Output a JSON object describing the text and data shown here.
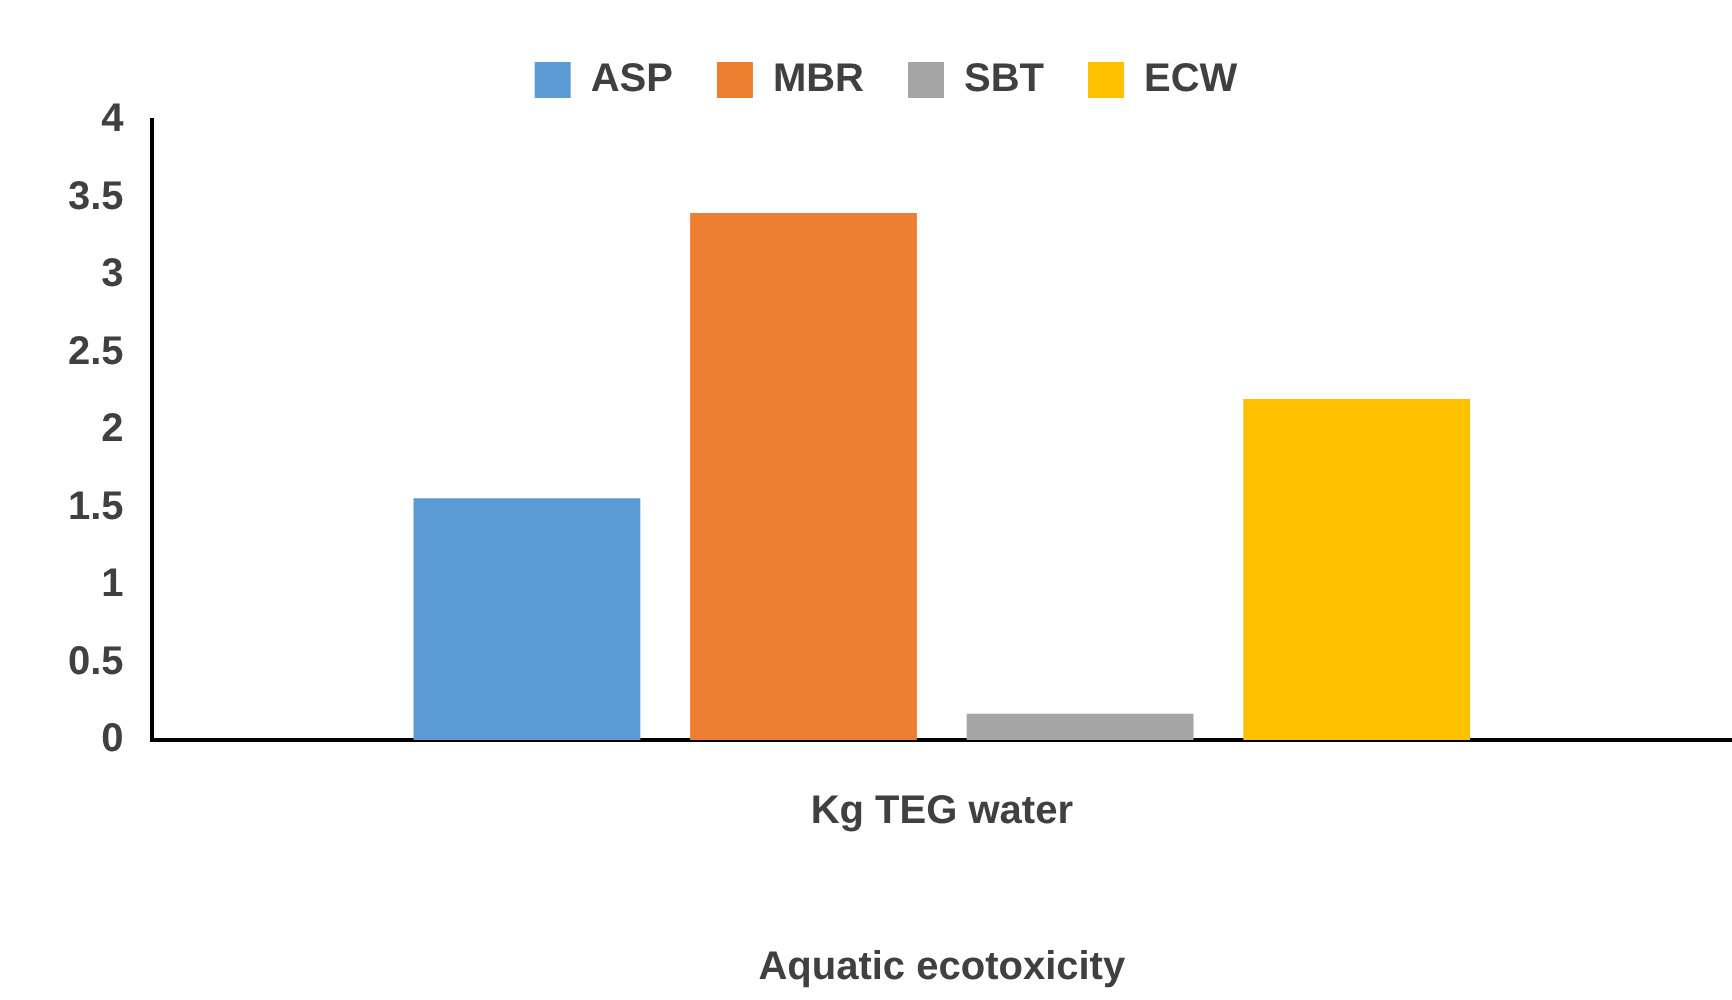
{
  "chart_data": {
    "type": "bar",
    "categories": [
      "Kg TEG water"
    ],
    "xlabel": "Aquatic ecotoxicity",
    "series": [
      {
        "name": "ASP",
        "color": "#5b9bd5",
        "values": [
          1.56
        ]
      },
      {
        "name": "MBR",
        "color": "#ed7d31",
        "values": [
          3.4
        ]
      },
      {
        "name": "SBT",
        "color": "#a5a5a5",
        "values": [
          0.17
        ]
      },
      {
        "name": "ECW",
        "color": "#ffc000",
        "values": [
          2.2
        ]
      }
    ],
    "ylim": [
      0,
      4
    ],
    "yticks": [
      0,
      0.5,
      1,
      1.5,
      2,
      2.5,
      3,
      3.5,
      4
    ],
    "grid": false,
    "legend": "top"
  }
}
